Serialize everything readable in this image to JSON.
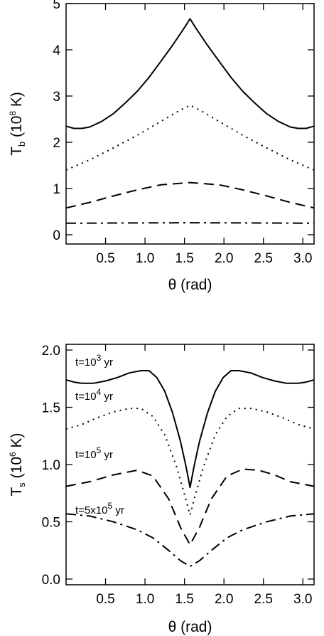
{
  "chart_data": [
    {
      "type": "line",
      "title": "",
      "xlabel": {
        "symbol": "θ",
        "unit": "(rad)"
      },
      "ylabel": {
        "symbol": "T",
        "subscript": "b",
        "unit_pre": "(10",
        "unit_exp": "8",
        "unit_post": " K)"
      },
      "xlim": [
        0,
        3.14159
      ],
      "ylim": [
        -0.2,
        5.0
      ],
      "x_ticks": [
        0.5,
        1.0,
        1.5,
        2.0,
        2.5,
        3.0
      ],
      "x_tick_labels": [
        "0.5",
        "1.0",
        "1.5",
        "2.0",
        "2.5",
        "3.0"
      ],
      "y_ticks": [
        0,
        1,
        2,
        3,
        4,
        5
      ],
      "y_tick_labels": [
        "0",
        "1",
        "2",
        "3",
        "4",
        "5"
      ],
      "grid": false,
      "series": [
        {
          "style": "solid",
          "x": [
            0.0,
            0.1,
            0.2,
            0.3,
            0.45,
            0.6,
            0.75,
            0.9,
            1.05,
            1.2,
            1.35,
            1.5,
            1.5708,
            1.64,
            1.79,
            1.94,
            2.09,
            2.24,
            2.39,
            2.54,
            2.69,
            2.84,
            2.94,
            3.04,
            3.1416
          ],
          "y": [
            2.35,
            2.3,
            2.3,
            2.33,
            2.45,
            2.62,
            2.85,
            3.1,
            3.4,
            3.75,
            4.1,
            4.48,
            4.67,
            4.48,
            4.1,
            3.75,
            3.4,
            3.1,
            2.85,
            2.62,
            2.45,
            2.33,
            2.3,
            2.3,
            2.35
          ]
        },
        {
          "style": "dotted",
          "x": [
            0.0,
            0.3,
            0.6,
            0.9,
            1.2,
            1.45,
            1.5708,
            1.69,
            1.94,
            2.24,
            2.54,
            2.84,
            3.1416
          ],
          "y": [
            1.4,
            1.62,
            1.88,
            2.15,
            2.45,
            2.7,
            2.8,
            2.7,
            2.45,
            2.15,
            1.88,
            1.62,
            1.4
          ]
        },
        {
          "style": "dashed",
          "x": [
            0.0,
            0.3,
            0.6,
            0.9,
            1.2,
            1.5708,
            1.94,
            2.24,
            2.54,
            2.84,
            3.1416
          ],
          "y": [
            0.58,
            0.7,
            0.84,
            0.97,
            1.08,
            1.13,
            1.08,
            0.97,
            0.84,
            0.7,
            0.58
          ]
        },
        {
          "style": "dashdot",
          "x": [
            0.0,
            0.8,
            1.5708,
            2.34,
            3.1416
          ],
          "y": [
            0.25,
            0.255,
            0.26,
            0.255,
            0.25
          ]
        }
      ]
    },
    {
      "type": "line",
      "title": "",
      "xlabel": {
        "symbol": "θ",
        "unit": "(rad)"
      },
      "ylabel": {
        "symbol": "T",
        "subscript": "s",
        "unit_pre": "(10",
        "unit_exp": "6",
        "unit_post": " K)"
      },
      "xlim": [
        0,
        3.14159
      ],
      "ylim": [
        -0.05,
        2.05
      ],
      "x_ticks": [
        0.5,
        1.0,
        1.5,
        2.0,
        2.5,
        3.0
      ],
      "x_tick_labels": [
        "0.5",
        "1.0",
        "1.5",
        "2.0",
        "2.5",
        "3.0"
      ],
      "y_ticks": [
        0.0,
        0.5,
        1.0,
        1.5,
        2.0
      ],
      "y_tick_labels": [
        "0.0",
        "0.5",
        "1.0",
        "1.5",
        "2.0"
      ],
      "grid": false,
      "annotations": [
        {
          "pre": "t=10",
          "exp": "3",
          "post": " yr"
        },
        {
          "pre": "t=10",
          "exp": "4",
          "post": " yr"
        },
        {
          "pre": "t=10",
          "exp": "5",
          "post": " yr"
        },
        {
          "pre": "t=5x10",
          "exp": "5",
          "post": " yr"
        }
      ],
      "series": [
        {
          "style": "solid",
          "x": [
            0.0,
            0.1,
            0.2,
            0.35,
            0.5,
            0.65,
            0.8,
            0.95,
            1.05,
            1.15,
            1.25,
            1.35,
            1.45,
            1.52,
            1.5708,
            1.62,
            1.69,
            1.79,
            1.89,
            1.99,
            2.09,
            2.19,
            2.34,
            2.49,
            2.64,
            2.79,
            2.94,
            3.04,
            3.1416
          ],
          "y": [
            1.74,
            1.72,
            1.71,
            1.71,
            1.73,
            1.76,
            1.8,
            1.82,
            1.82,
            1.76,
            1.64,
            1.45,
            1.2,
            0.98,
            0.8,
            0.98,
            1.2,
            1.45,
            1.64,
            1.76,
            1.82,
            1.82,
            1.8,
            1.76,
            1.73,
            1.71,
            1.71,
            1.72,
            1.74
          ]
        },
        {
          "style": "dotted",
          "x": [
            0.0,
            0.2,
            0.4,
            0.6,
            0.8,
            0.95,
            1.1,
            1.25,
            1.4,
            1.5,
            1.5708,
            1.64,
            1.74,
            1.89,
            2.04,
            2.19,
            2.34,
            2.54,
            2.74,
            2.94,
            3.1416
          ],
          "y": [
            1.31,
            1.35,
            1.41,
            1.46,
            1.49,
            1.49,
            1.42,
            1.26,
            0.98,
            0.74,
            0.56,
            0.74,
            0.98,
            1.26,
            1.42,
            1.49,
            1.49,
            1.46,
            1.41,
            1.35,
            1.31
          ]
        },
        {
          "style": "dashed",
          "x": [
            0.0,
            0.3,
            0.6,
            0.9,
            1.1,
            1.3,
            1.45,
            1.5708,
            1.69,
            1.84,
            2.04,
            2.24,
            2.44,
            2.64,
            2.84,
            3.1416
          ],
          "y": [
            0.81,
            0.85,
            0.91,
            0.95,
            0.9,
            0.7,
            0.45,
            0.3,
            0.45,
            0.7,
            0.9,
            0.96,
            0.95,
            0.91,
            0.85,
            0.81
          ]
        },
        {
          "style": "dashdot",
          "x": [
            0.0,
            0.3,
            0.6,
            0.9,
            1.1,
            1.3,
            1.45,
            1.5708,
            1.69,
            1.84,
            2.04,
            2.24,
            2.54,
            2.84,
            3.1416
          ],
          "y": [
            0.57,
            0.55,
            0.5,
            0.43,
            0.36,
            0.25,
            0.16,
            0.11,
            0.16,
            0.25,
            0.36,
            0.43,
            0.5,
            0.55,
            0.57
          ]
        }
      ]
    }
  ]
}
